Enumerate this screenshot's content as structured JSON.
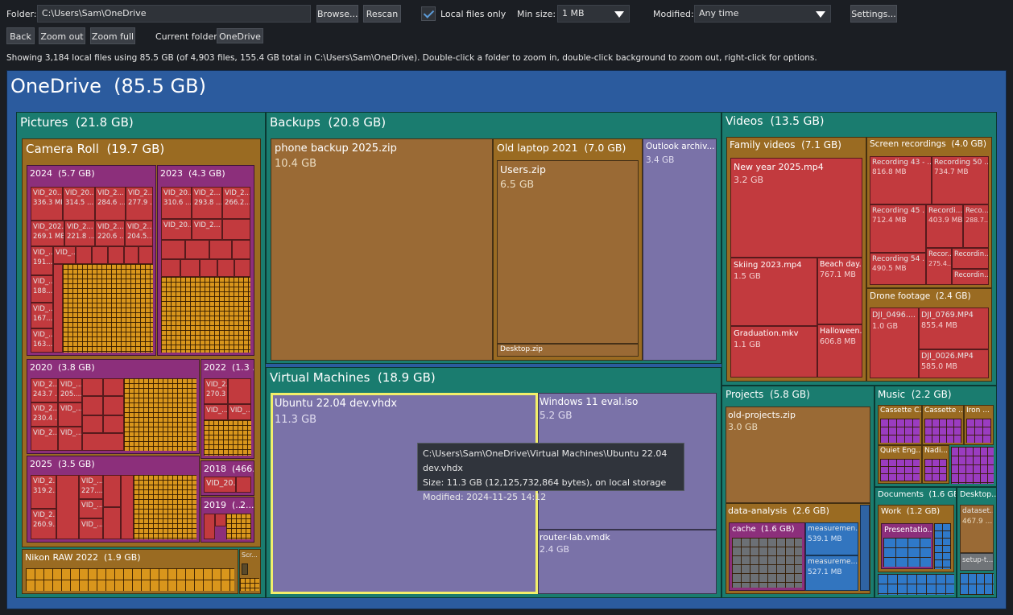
{
  "toolbar": {
    "folder_label": "Folder:",
    "folder_value": "C:\\Users\\Sam\\OneDrive",
    "browse": "Browse...",
    "rescan": "Rescan",
    "local_only_label": "Local files only",
    "local_only_checked": true,
    "min_size_label": "Min size:",
    "min_size_value": "1 MB",
    "modified_label": "Modified:",
    "modified_value": "Any time",
    "settings": "Settings...",
    "back": "Back",
    "zoom_out": "Zoom out",
    "zoom_full": "Zoom full",
    "current_folder_label": "Current folder:",
    "current_folder_value": "OneDrive"
  },
  "status": "Showing 3,184 local files using 85.5 GB (of 4,903 files, 155.4 GB total in C:\\Users\\Sam\\OneDrive). Double-click a folder to zoom in, double-click background to zoom out, right-click for options.",
  "root": {
    "name": "OneDrive",
    "size": "(85.5 GB)"
  },
  "pictures": {
    "name": "Pictures",
    "size": "(21.8 GB)",
    "camera_roll": {
      "name": "Camera Roll",
      "size": "(19.7 GB)"
    },
    "y2024": {
      "name": "2024",
      "size": "(5.7 GB)",
      "files": [
        {
          "n": "VID_20...",
          "s": "336.3 MB"
        },
        {
          "n": "VID_20...",
          "s": "314.5 ..."
        },
        {
          "n": "VID_2...",
          "s": "284.6 ..."
        },
        {
          "n": "VID_2...",
          "s": "277.9 ..."
        },
        {
          "n": "VID_202...",
          "s": "269.1 MB"
        },
        {
          "n": "VID_2...",
          "s": "221.8 ..."
        },
        {
          "n": "VID_2...",
          "s": "220.6 ..."
        },
        {
          "n": "VID_2...",
          "s": "204.5..."
        },
        {
          "n": "VID_...",
          "s": "191...."
        },
        {
          "n": "VID_...",
          "s": ""
        },
        {
          "n": "VID_...",
          "s": "188...."
        },
        {
          "n": "VID_...",
          "s": "167...."
        },
        {
          "n": "VID_...",
          "s": "163...."
        }
      ]
    },
    "y2023": {
      "name": "2023",
      "size": "(4.3 GB)",
      "files": [
        {
          "n": "VID_20...",
          "s": "310.6 ..."
        },
        {
          "n": "VID_2...",
          "s": "293.8 ..."
        },
        {
          "n": "VID_2...",
          "s": "266.2..."
        },
        {
          "n": "VID_20...",
          "s": ""
        },
        {
          "n": "VID_2...",
          "s": ""
        }
      ]
    },
    "y2020": {
      "name": "2020",
      "size": "(3.8 GB)",
      "files": [
        {
          "n": "VID_2...",
          "s": "243.7 ..."
        },
        {
          "n": "VID_...",
          "s": "205...."
        },
        {
          "n": "VID_2...",
          "s": "230.4 ..."
        },
        {
          "n": "VID_...",
          "s": ""
        },
        {
          "n": "VID_2...",
          "s": ""
        },
        {
          "n": "VID_...",
          "s": ""
        }
      ]
    },
    "y2022": {
      "name": "2022",
      "size": "(1.3 ...",
      "files": [
        {
          "n": "VID_2...",
          "s": "270.3 ..."
        },
        {
          "n": "VID_...",
          "s": ""
        },
        {
          "n": "VID_...",
          "s": ""
        }
      ]
    },
    "y2025": {
      "name": "2025",
      "size": "(3.5 GB)",
      "files": [
        {
          "n": "VID_2...",
          "s": "319.2..."
        },
        {
          "n": "VID_...",
          "s": "227...."
        },
        {
          "n": "VID_2...",
          "s": "260.9..."
        },
        {
          "n": "VID_...",
          "s": ""
        },
        {
          "n": "VID_...",
          "s": ""
        }
      ]
    },
    "y2018": {
      "name": "2018",
      "size": "(466.4 ...",
      "file": "VID_20..."
    },
    "y2019": {
      "name": "2019",
      "size": "(...",
      "extra": "2..."
    },
    "nikon": {
      "name": "Nikon RAW 2022",
      "size": "(1.9 GB)"
    },
    "scr": {
      "name": "Scr..."
    }
  },
  "backups": {
    "name": "Backups",
    "size": "(20.8 GB)",
    "phone": {
      "name": "phone backup 2025.zip",
      "size": "10.4 GB"
    },
    "laptop": {
      "name": "Old laptop 2021",
      "size": "(7.0 GB)"
    },
    "users_zip": {
      "name": "Users.zip",
      "size": "6.5 GB"
    },
    "desktop_zip": {
      "name": "Desktop.zip"
    },
    "outlook": {
      "name": "Outlook archiv...",
      "size": "3.4 GB"
    }
  },
  "vms": {
    "name": "Virtual Machines",
    "size": "(18.9 GB)",
    "ubuntu": {
      "name": "Ubuntu 22.04 dev.vhdx",
      "size": "11.3 GB"
    },
    "win11": {
      "name": "Windows 11 eval.iso",
      "size": "5.2 GB"
    },
    "router": {
      "name": "router-lab.vmdk",
      "size": "2.4 GB"
    }
  },
  "tooltip": {
    "path": "C:\\Users\\Sam\\OneDrive\\Virtual Machines\\Ubuntu 22.04 dev.vhdx",
    "size": "Size: 11.3 GB (12,125,732,864 bytes), on local storage",
    "modified": "Modified: 2024-11-25 14:12"
  },
  "videos": {
    "name": "Videos",
    "size": "(13.5 GB)",
    "family": {
      "name": "Family videos",
      "size": "(7.1 GB)"
    },
    "newyear": {
      "name": "New year 2025.mp4",
      "size": "3.2 GB"
    },
    "skiing": {
      "name": "Skiing 2023.mp4",
      "size": "1.5 GB"
    },
    "beach": {
      "name": "Beach day...",
      "size": "767.1 MB"
    },
    "graduation": {
      "name": "Graduation.mkv",
      "size": "1.1 GB"
    },
    "halloween": {
      "name": "Halloween...",
      "size": "606.8 MB"
    },
    "screen_rec": {
      "name": "Screen recordings",
      "size": "(4.0 GB)"
    },
    "rec43": {
      "name": "Recording 43 - ...",
      "size": "816.8 MB"
    },
    "rec50": {
      "name": "Recording 50 ...",
      "size": "734.7 MB"
    },
    "rec45": {
      "name": "Recording 45 ...",
      "size": "712.4 MB"
    },
    "recordi1": {
      "name": "Recordi...",
      "size": "403.9 MB"
    },
    "reco1": {
      "name": "Reco...",
      "size": "288.7..."
    },
    "rec54": {
      "name": "Recording 54 ...",
      "size": "490.5 MB"
    },
    "recor1": {
      "name": "Recor...",
      "size": "275.4..."
    },
    "recordin1": {
      "name": "Recordin..."
    },
    "recordin2": {
      "name": "Recordin..."
    },
    "drone": {
      "name": "Drone footage",
      "size": "(2.4 GB)"
    },
    "dji0496": {
      "name": "DJI_0496....",
      "size": "1.0 GB"
    },
    "dji0769": {
      "name": "DJI_0769.MP4",
      "size": "855.4 MB"
    },
    "dji0026": {
      "name": "DJI_0026.MP4",
      "size": "585.0 MB"
    }
  },
  "projects": {
    "name": "Projects",
    "size": "(5.8 GB)",
    "old": {
      "name": "old-projects.zip",
      "size": "3.0 GB"
    },
    "data": {
      "name": "data-analysis",
      "size": "(2.6 GB)"
    },
    "cache": {
      "name": "cache",
      "size": "(1.6 GB)"
    },
    "meas1": {
      "name": "measuremen...",
      "size": "539.1 MB"
    },
    "meas2": {
      "name": "measureme...",
      "size": "527.1 MB"
    }
  },
  "music": {
    "name": "Music",
    "size": "(2.2 GB)",
    "cas1": {
      "name": "Cassette C..."
    },
    "cas2": {
      "name": "Cassette ..."
    },
    "iron": {
      "name": "Iron ..."
    },
    "quiet": {
      "name": "Quiet Eng..."
    },
    "nadi": {
      "name": "Nadi..."
    }
  },
  "documents": {
    "name": "Documents",
    "size": "(1.6 GB)",
    "work": {
      "name": "Work",
      "size": "(1.2 GB)"
    },
    "presentation": {
      "name": "Presentatio..."
    }
  },
  "desktop": {
    "name": "Desktop...",
    "dataset": {
      "name": "dataset...",
      "size": "467.9 ..."
    },
    "setup": {
      "name": "setup-t..."
    }
  },
  "colors": {
    "root_folder": "#2b5b9e",
    "section_folder": "#1a7c6f",
    "sub_folder": "#9a6b22",
    "year_folder": "#8c2f7b",
    "video_file": "#c23a3e",
    "archive_file": "#9a6a35",
    "disk_image": "#7a72a8",
    "selection": "#f2ef6a"
  }
}
